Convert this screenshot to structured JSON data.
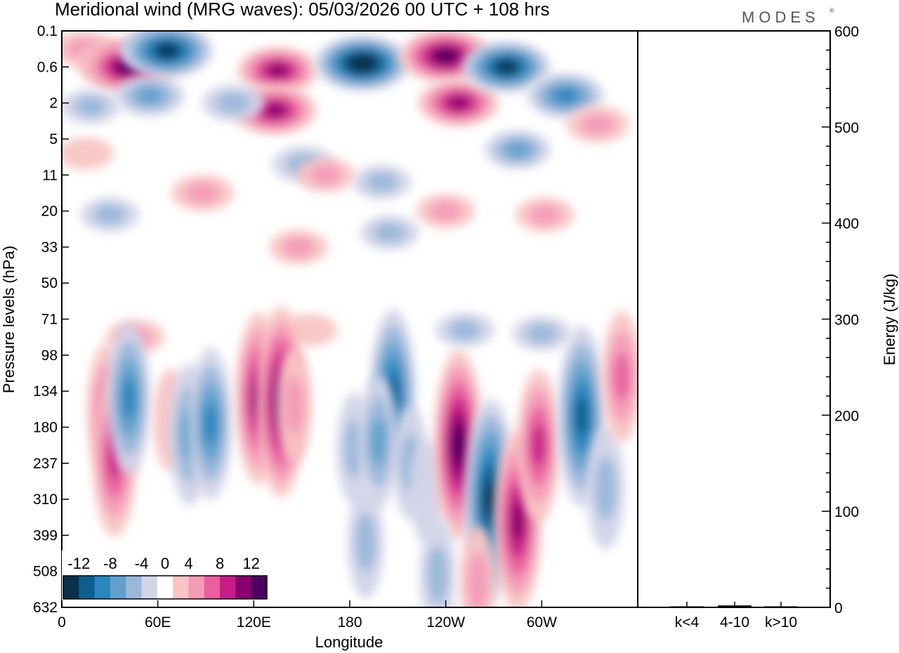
{
  "chart_data": {
    "type": "heatmap",
    "title": "Meridional wind (MRG waves):  05/03/2026  00 UTC  + 108 hrs",
    "brand": "MODES",
    "xlabel": "Longitude",
    "ylabel": "Pressure levels (hPa)",
    "x_ticks": [
      "0",
      "60E",
      "120E",
      "180",
      "120W",
      "60W"
    ],
    "x_tick_degrees": [
      0,
      60,
      120,
      180,
      240,
      300
    ],
    "x_range_degrees": [
      0,
      360
    ],
    "y_levels": [
      "0.1",
      "0.6",
      "2",
      "5",
      "11",
      "20",
      "33",
      "50",
      "71",
      "98",
      "134",
      "180",
      "237",
      "310",
      "399",
      "508",
      "632"
    ],
    "colorbar": {
      "labels": [
        "-12",
        "-8",
        "-4",
        "0",
        "4",
        "8",
        "12"
      ],
      "bounds": [
        -14,
        -12,
        -10,
        -8,
        -6,
        -4,
        -2,
        2,
        4,
        6,
        8,
        10,
        12,
        14
      ],
      "colors": [
        "#08304a",
        "#0f5f8e",
        "#2b86bd",
        "#62a0cc",
        "#9ab8da",
        "#d2d4e8",
        "#ffffff",
        "#f8c4c4",
        "#f49bb8",
        "#e8609e",
        "#c81c86",
        "#8a0070",
        "#4e0060"
      ]
    },
    "features": [
      {
        "lon": 14,
        "lev": 0.5,
        "val": 4
      },
      {
        "lon": 35,
        "lev": 0.9,
        "val": 9
      },
      {
        "lon": 42,
        "lev": 1.0,
        "val": 12
      },
      {
        "lon": 63,
        "lev": 0.5,
        "val": -9
      },
      {
        "lon": 66,
        "lev": 0.55,
        "val": -12
      },
      {
        "lon": 55,
        "lev": 1.8,
        "val": -6
      },
      {
        "lon": 18,
        "lev": 2.1,
        "val": -3
      },
      {
        "lon": 135,
        "lev": 1.1,
        "val": 9
      },
      {
        "lon": 133,
        "lev": 2.2,
        "val": 10
      },
      {
        "lon": 107,
        "lev": 2.0,
        "val": -4
      },
      {
        "lon": 188,
        "lev": 0.9,
        "val": -13
      },
      {
        "lon": 240,
        "lev": 0.7,
        "val": 12
      },
      {
        "lon": 248,
        "lev": 2.0,
        "val": 9
      },
      {
        "lon": 278,
        "lev": 1.0,
        "val": -11
      },
      {
        "lon": 315,
        "lev": 1.8,
        "val": -8
      },
      {
        "lon": 335,
        "lev": 2.6,
        "val": 4
      },
      {
        "lon": 285,
        "lev": 3.3,
        "val": -5
      },
      {
        "lon": 15,
        "lev": 3.4,
        "val": 2
      },
      {
        "lon": 151,
        "lev": 3.7,
        "val": -4
      },
      {
        "lon": 200,
        "lev": 4.2,
        "val": -3
      },
      {
        "lon": 88,
        "lev": 4.5,
        "val": 4
      },
      {
        "lon": 165,
        "lev": 4.0,
        "val": 3
      },
      {
        "lon": 240,
        "lev": 5.0,
        "val": 3
      },
      {
        "lon": 302,
        "lev": 5.1,
        "val": 3
      },
      {
        "lon": 30,
        "lev": 5.1,
        "val": -3
      },
      {
        "lon": 148,
        "lev": 6.0,
        "val": 3
      },
      {
        "lon": 205,
        "lev": 5.6,
        "val": -3
      },
      {
        "lon": 46,
        "lev": 8.5,
        "val": 3
      },
      {
        "lon": 155,
        "lev": 8.3,
        "val": 2
      },
      {
        "lon": 252,
        "lev": 8.3,
        "val": -3
      },
      {
        "lon": 300,
        "lev": 8.4,
        "val": -3
      },
      {
        "lon": 28,
        "lev": 10.5,
        "val": 5
      },
      {
        "lon": 33,
        "lev": 11.8,
        "val": 8
      },
      {
        "lon": 42,
        "lev": 10.2,
        "val": -7
      },
      {
        "lon": 68,
        "lev": 10.8,
        "val": 2
      },
      {
        "lon": 80,
        "lev": 11.2,
        "val": -6
      },
      {
        "lon": 93,
        "lev": 10.9,
        "val": -7
      },
      {
        "lon": 123,
        "lev": 10.2,
        "val": 9
      },
      {
        "lon": 137,
        "lev": 10.3,
        "val": 11
      },
      {
        "lon": 145,
        "lev": 10.4,
        "val": 3
      },
      {
        "lon": 183,
        "lev": 11.6,
        "val": -3
      },
      {
        "lon": 207,
        "lev": 10.1,
        "val": -9
      },
      {
        "lon": 198,
        "lev": 11.4,
        "val": -5
      },
      {
        "lon": 218,
        "lev": 12.0,
        "val": -3
      },
      {
        "lon": 228,
        "lev": 12.8,
        "val": -2
      },
      {
        "lon": 248,
        "lev": 11.5,
        "val": 11
      },
      {
        "lon": 268,
        "lev": 13.0,
        "val": -12
      },
      {
        "lon": 285,
        "lev": 13.6,
        "val": 10
      },
      {
        "lon": 298,
        "lev": 11.5,
        "val": 7
      },
      {
        "lon": 325,
        "lev": 10.7,
        "val": -10
      },
      {
        "lon": 340,
        "lev": 12.7,
        "val": -4
      },
      {
        "lon": 350,
        "lev": 9.6,
        "val": 5
      },
      {
        "lon": 190,
        "lev": 14.2,
        "val": -3
      },
      {
        "lon": 235,
        "lev": 15.1,
        "val": -3
      },
      {
        "lon": 260,
        "lev": 15.3,
        "val": 3
      }
    ],
    "energy_panel": {
      "ylabel": "Energy (J/kg)",
      "y_ticks": [
        "0",
        "100",
        "200",
        "300",
        "400",
        "500",
        "600"
      ],
      "ylim": [
        0,
        600
      ],
      "categories": [
        "k<4",
        "4-10",
        "k>10"
      ],
      "values": [
        0.5,
        2.0,
        0.5
      ],
      "bar_color": "#000000"
    }
  }
}
